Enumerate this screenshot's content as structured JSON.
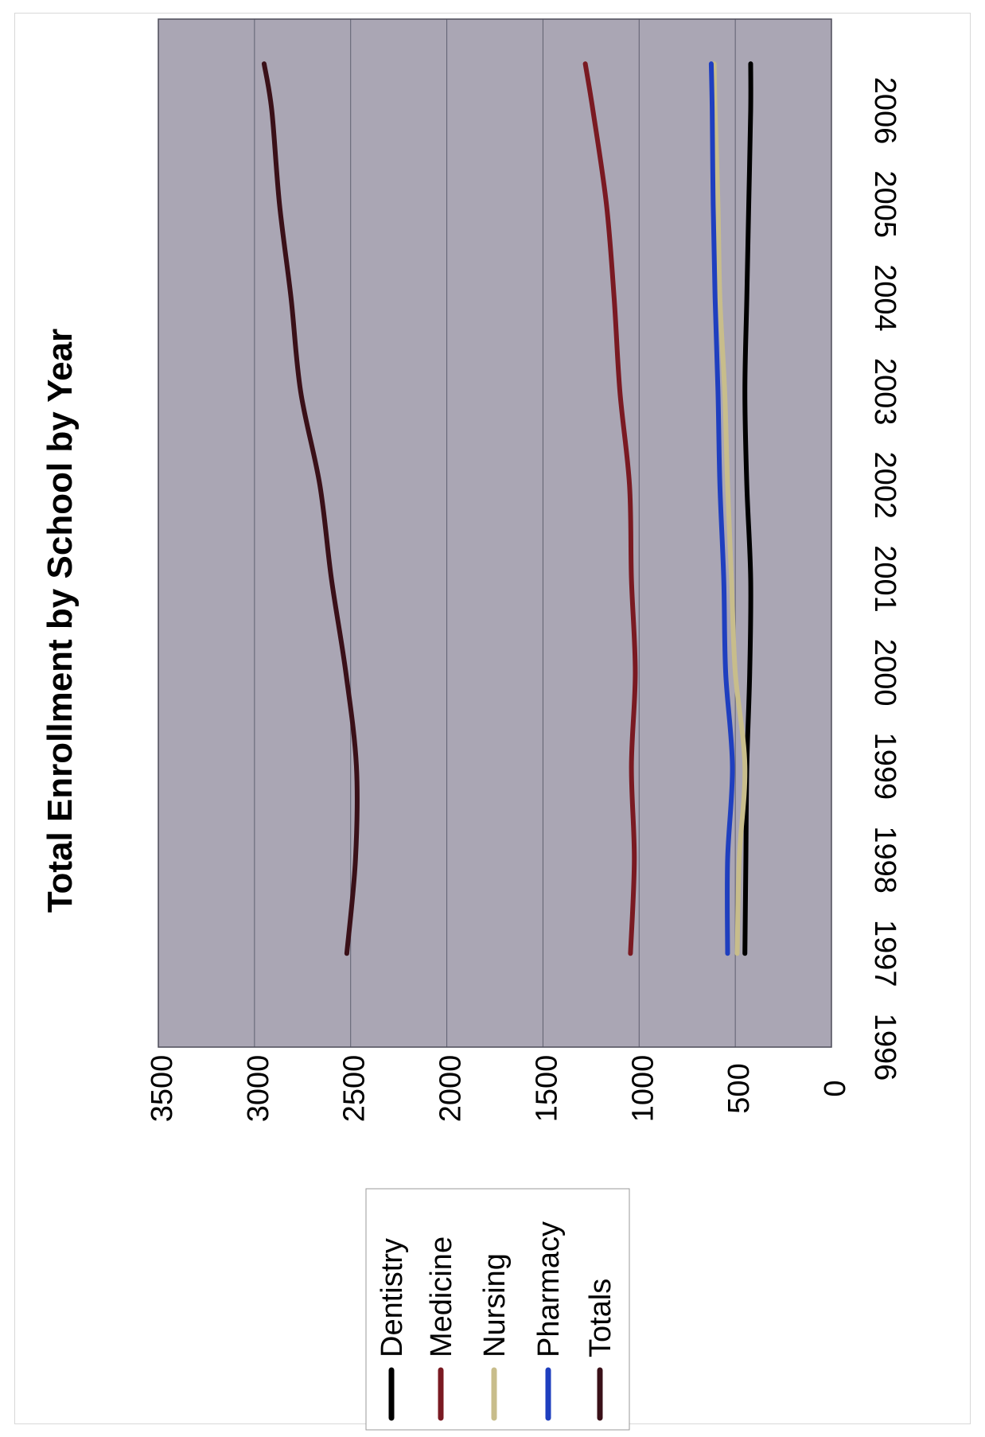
{
  "chart_data": {
    "type": "line",
    "title": "Total Enrollment by School by Year",
    "x": [
      "1996",
      "1997",
      "1998",
      "1999",
      "2000",
      "2001",
      "2002",
      "2003",
      "2004",
      "2005",
      "2006"
    ],
    "y_ticks": [
      "0",
      "500",
      "1000",
      "1500",
      "2000",
      "2500",
      "3000",
      "3500"
    ],
    "ylim": [
      0,
      3500
    ],
    "grid": true,
    "legend_position": "bottom-left",
    "orientation": "rotated 90 degrees clockwise",
    "series": [
      {
        "name": "Dentistry",
        "color": "#000000",
        "points": [
          [
            1997,
            450
          ],
          [
            1998,
            445
          ],
          [
            1999,
            440
          ],
          [
            2000,
            425
          ],
          [
            2001,
            420
          ],
          [
            2002,
            440
          ],
          [
            2003,
            450
          ],
          [
            2004,
            440
          ],
          [
            2005,
            430
          ],
          [
            2006,
            420
          ],
          [
            2006.5,
            420
          ]
        ]
      },
      {
        "name": "Medicine",
        "color": "#7a1a22",
        "points": [
          [
            1997,
            1045
          ],
          [
            1998,
            1025
          ],
          [
            1999,
            1040
          ],
          [
            2000,
            1020
          ],
          [
            2001,
            1040
          ],
          [
            2002,
            1050
          ],
          [
            2003,
            1100
          ],
          [
            2004,
            1130
          ],
          [
            2005,
            1170
          ],
          [
            2006,
            1240
          ],
          [
            2006.5,
            1280
          ]
        ]
      },
      {
        "name": "Nursing",
        "color": "#c8bd8b",
        "points": [
          [
            1997,
            490
          ],
          [
            1998,
            480
          ],
          [
            1999,
            450
          ],
          [
            2000,
            500
          ],
          [
            2001,
            520
          ],
          [
            2002,
            540
          ],
          [
            2003,
            555
          ],
          [
            2004,
            580
          ],
          [
            2005,
            590
          ],
          [
            2006,
            605
          ],
          [
            2006.5,
            610
          ]
        ]
      },
      {
        "name": "Pharmacy",
        "color": "#1f3fbf",
        "points": [
          [
            1997,
            540
          ],
          [
            1998,
            540
          ],
          [
            1999,
            515
          ],
          [
            2000,
            550
          ],
          [
            2001,
            560
          ],
          [
            2002,
            580
          ],
          [
            2003,
            590
          ],
          [
            2004,
            605
          ],
          [
            2005,
            615
          ],
          [
            2006,
            620
          ],
          [
            2006.5,
            625
          ]
        ]
      },
      {
        "name": "Totals",
        "color": "#3a1018",
        "points": [
          [
            1997,
            2520
          ],
          [
            1998,
            2475
          ],
          [
            1999,
            2470
          ],
          [
            2000,
            2525
          ],
          [
            2001,
            2600
          ],
          [
            2002,
            2660
          ],
          [
            2003,
            2760
          ],
          [
            2004,
            2810
          ],
          [
            2005,
            2870
          ],
          [
            2006,
            2910
          ],
          [
            2006.5,
            2950
          ]
        ]
      }
    ]
  }
}
